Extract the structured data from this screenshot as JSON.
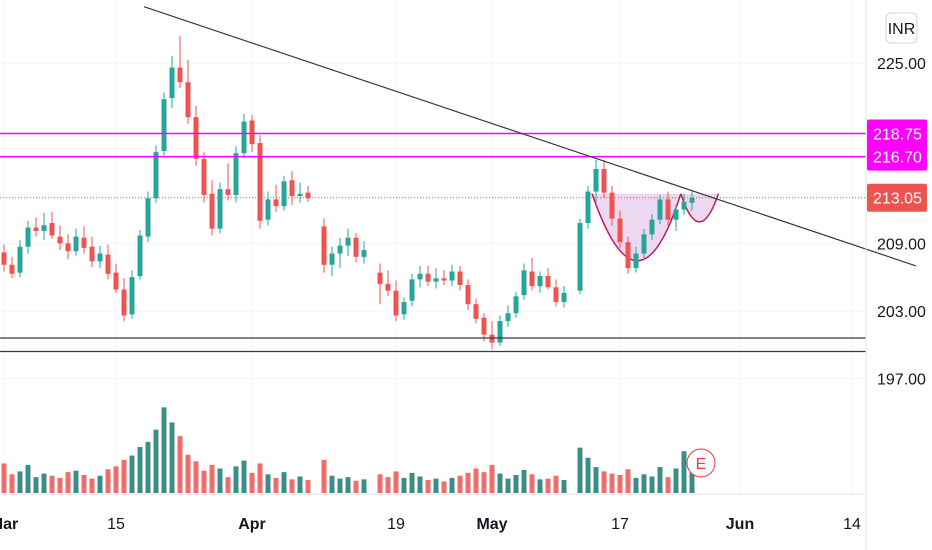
{
  "chart_data": {
    "type": "candlestick",
    "currency": "INR",
    "y_axis": {
      "min": 193.5,
      "max": 229,
      "ticks": [
        225.0,
        218.75,
        216.7,
        213.05,
        209.0,
        203.0,
        197.0
      ],
      "tick_labels": [
        "225.00",
        "209.00",
        "203.00",
        "197.00"
      ]
    },
    "x_axis": {
      "labels": [
        "Mar",
        "15",
        "Apr",
        "19",
        "May",
        "17",
        "Jun",
        "14"
      ],
      "bold_labels": [
        "Mar",
        "Apr",
        "May",
        "Jun"
      ],
      "label_days": [
        0,
        14,
        31,
        49,
        61,
        77,
        92,
        106
      ]
    },
    "horizontal_levels": [
      {
        "value": 218.75,
        "label": "218.75",
        "color": "#ff00ff"
      },
      {
        "value": 216.7,
        "label": "216.70",
        "color": "#ff00ff"
      }
    ],
    "support_levels": [
      200.6,
      199.4
    ],
    "current_price": {
      "value": 213.05,
      "label": "213.05",
      "color": "#ef5350"
    },
    "trendline": {
      "start": {
        "day": 17.5,
        "price": 230.0
      },
      "end": {
        "day": 114,
        "price": 207.0
      }
    },
    "pattern": "cup-and-handle",
    "earnings_marker": "E",
    "candles": [
      [
        0,
        208.2,
        208.9,
        206.5,
        207.1
      ],
      [
        1,
        207.1,
        207.8,
        205.9,
        206.3
      ],
      [
        2,
        206.4,
        209.3,
        206.0,
        208.7
      ],
      [
        3,
        208.7,
        211.0,
        208.1,
        210.4
      ],
      [
        4,
        210.4,
        211.3,
        209.6,
        210.1
      ],
      [
        5,
        210.1,
        211.7,
        209.3,
        210.6
      ],
      [
        6,
        210.8,
        211.8,
        209.4,
        209.7
      ],
      [
        7,
        209.6,
        210.6,
        208.4,
        209.0
      ],
      [
        8,
        209.0,
        209.8,
        207.6,
        208.3
      ],
      [
        9,
        208.3,
        210.3,
        207.9,
        209.6
      ],
      [
        10,
        209.5,
        210.5,
        208.1,
        208.6
      ],
      [
        11,
        208.7,
        209.6,
        206.9,
        207.4
      ],
      [
        12,
        207.4,
        208.8,
        206.8,
        208.1
      ],
      [
        13,
        208.0,
        208.9,
        205.8,
        206.3
      ],
      [
        14,
        206.4,
        207.2,
        204.6,
        204.9
      ],
      [
        15,
        204.9,
        205.9,
        202.1,
        202.6
      ],
      [
        16,
        202.7,
        206.6,
        202.3,
        206.0
      ],
      [
        17,
        206.1,
        210.2,
        205.8,
        209.7
      ],
      [
        18,
        209.6,
        213.6,
        209.1,
        213.0
      ],
      [
        19,
        213.0,
        217.7,
        212.6,
        217.1
      ],
      [
        20,
        217.2,
        222.4,
        216.8,
        221.8
      ],
      [
        21,
        221.9,
        225.6,
        221.0,
        224.6
      ],
      [
        22,
        224.6,
        227.4,
        222.8,
        223.3
      ],
      [
        23,
        223.3,
        225.3,
        219.6,
        220.2
      ],
      [
        24,
        220.2,
        221.2,
        215.9,
        216.5
      ],
      [
        25,
        216.5,
        217.1,
        212.6,
        213.3
      ],
      [
        26,
        213.4,
        214.6,
        209.7,
        210.3
      ],
      [
        27,
        210.3,
        214.4,
        209.9,
        213.8
      ],
      [
        28,
        213.8,
        216.1,
        212.8,
        213.3
      ],
      [
        29,
        213.3,
        217.6,
        212.6,
        217.0
      ],
      [
        30,
        217.0,
        220.5,
        216.6,
        219.8
      ],
      [
        31,
        219.9,
        220.4,
        217.1,
        217.8
      ],
      [
        32,
        217.9,
        218.6,
        210.3,
        211.0
      ],
      [
        33,
        211.1,
        213.6,
        210.6,
        212.9
      ],
      [
        34,
        212.9,
        214.2,
        211.8,
        212.3
      ],
      [
        35,
        212.3,
        215.0,
        211.9,
        214.5
      ],
      [
        36,
        214.6,
        215.4,
        212.4,
        213.2
      ],
      [
        37,
        213.2,
        214.4,
        212.6,
        213.4
      ],
      [
        38,
        213.5,
        214.1,
        212.7,
        213.0
      ],
      [
        40,
        210.5,
        211.2,
        206.4,
        207.1
      ],
      [
        41,
        207.1,
        208.7,
        206.1,
        208.1
      ],
      [
        42,
        208.1,
        209.5,
        206.8,
        208.8
      ],
      [
        43,
        208.8,
        210.3,
        207.9,
        209.5
      ],
      [
        44,
        209.5,
        209.9,
        207.3,
        207.8
      ],
      [
        45,
        207.8,
        209.2,
        207.2,
        208.4
      ],
      [
        47,
        206.4,
        207.2,
        203.6,
        205.4
      ],
      [
        48,
        205.4,
        206.6,
        204.3,
        204.8
      ],
      [
        49,
        204.8,
        205.7,
        202.1,
        202.6
      ],
      [
        50,
        202.7,
        204.2,
        202.2,
        203.8
      ],
      [
        51,
        203.9,
        206.3,
        203.4,
        205.8
      ],
      [
        52,
        205.8,
        207.0,
        205.1,
        206.3
      ],
      [
        53,
        206.3,
        207.0,
        205.2,
        205.6
      ],
      [
        54,
        205.6,
        206.8,
        205.0,
        205.9
      ],
      [
        55,
        205.9,
        206.6,
        205.3,
        205.7
      ],
      [
        56,
        205.7,
        207.1,
        205.2,
        206.5
      ],
      [
        57,
        206.5,
        207.0,
        204.8,
        205.3
      ],
      [
        58,
        205.3,
        205.8,
        203.1,
        203.6
      ],
      [
        59,
        203.6,
        204.1,
        201.9,
        202.3
      ],
      [
        60,
        202.4,
        202.8,
        200.3,
        200.9
      ],
      [
        61,
        200.9,
        202.1,
        199.6,
        200.2
      ],
      [
        62,
        200.2,
        202.6,
        199.9,
        202.1
      ],
      [
        63,
        202.1,
        203.5,
        201.6,
        202.8
      ],
      [
        64,
        202.8,
        204.7,
        202.4,
        204.3
      ],
      [
        65,
        204.4,
        207.2,
        204.0,
        206.6
      ],
      [
        66,
        206.5,
        207.7,
        204.8,
        205.2
      ],
      [
        67,
        205.2,
        206.5,
        204.6,
        206.1
      ],
      [
        68,
        206.1,
        206.8,
        204.9,
        205.1
      ],
      [
        69,
        205.1,
        205.8,
        203.4,
        203.8
      ],
      [
        70,
        203.8,
        205.2,
        203.3,
        204.6
      ],
      [
        72,
        204.8,
        211.2,
        204.5,
        210.8
      ],
      [
        73,
        210.8,
        214.1,
        210.3,
        213.6
      ],
      [
        74,
        213.6,
        216.4,
        212.6,
        215.6
      ],
      [
        75,
        215.6,
        216.4,
        213.0,
        213.5
      ],
      [
        76,
        213.5,
        214.1,
        210.6,
        211.2
      ],
      [
        77,
        211.2,
        211.9,
        208.6,
        209.1
      ],
      [
        78,
        209.1,
        209.6,
        206.3,
        206.8
      ],
      [
        79,
        206.8,
        208.7,
        206.4,
        208.1
      ],
      [
        80,
        208.1,
        210.3,
        207.7,
        209.8
      ],
      [
        81,
        209.8,
        211.6,
        209.3,
        211.1
      ],
      [
        82,
        211.1,
        213.3,
        210.7,
        212.9
      ],
      [
        83,
        212.9,
        213.6,
        210.6,
        211.1
      ],
      [
        84,
        211.1,
        212.4,
        210.1,
        212.0
      ],
      [
        85,
        212.0,
        213.4,
        211.5,
        212.7
      ],
      [
        86,
        212.6,
        213.7,
        211.9,
        213.05
      ]
    ],
    "volumes": [
      [
        0,
        4.1,
        "d"
      ],
      [
        1,
        2.6,
        "d"
      ],
      [
        2,
        3.0,
        "u"
      ],
      [
        3,
        3.9,
        "u"
      ],
      [
        4,
        2.2,
        "u"
      ],
      [
        5,
        2.7,
        "u"
      ],
      [
        6,
        2.4,
        "d"
      ],
      [
        7,
        2.1,
        "d"
      ],
      [
        8,
        2.9,
        "d"
      ],
      [
        9,
        3.1,
        "u"
      ],
      [
        10,
        2.5,
        "d"
      ],
      [
        11,
        2.0,
        "d"
      ],
      [
        12,
        2.4,
        "u"
      ],
      [
        13,
        3.3,
        "d"
      ],
      [
        14,
        3.7,
        "d"
      ],
      [
        15,
        4.6,
        "d"
      ],
      [
        16,
        5.2,
        "u"
      ],
      [
        17,
        6.4,
        "u"
      ],
      [
        18,
        7.1,
        "u"
      ],
      [
        19,
        8.8,
        "u"
      ],
      [
        20,
        11.9,
        "u"
      ],
      [
        21,
        9.8,
        "u"
      ],
      [
        22,
        7.9,
        "d"
      ],
      [
        23,
        5.3,
        "d"
      ],
      [
        24,
        4.4,
        "d"
      ],
      [
        25,
        3.1,
        "d"
      ],
      [
        26,
        3.9,
        "d"
      ],
      [
        27,
        3.4,
        "u"
      ],
      [
        28,
        2.2,
        "d"
      ],
      [
        29,
        3.7,
        "u"
      ],
      [
        30,
        4.5,
        "u"
      ],
      [
        31,
        2.8,
        "d"
      ],
      [
        32,
        4.1,
        "d"
      ],
      [
        33,
        2.6,
        "u"
      ],
      [
        34,
        2.1,
        "d"
      ],
      [
        35,
        2.9,
        "u"
      ],
      [
        36,
        1.9,
        "d"
      ],
      [
        37,
        2.3,
        "u"
      ],
      [
        38,
        1.8,
        "d"
      ],
      [
        40,
        4.6,
        "d"
      ],
      [
        41,
        2.4,
        "u"
      ],
      [
        42,
        2.0,
        "u"
      ],
      [
        43,
        2.2,
        "u"
      ],
      [
        44,
        1.7,
        "d"
      ],
      [
        45,
        1.9,
        "u"
      ],
      [
        47,
        2.6,
        "d"
      ],
      [
        48,
        2.2,
        "d"
      ],
      [
        49,
        3.0,
        "d"
      ],
      [
        50,
        2.1,
        "u"
      ],
      [
        51,
        2.8,
        "u"
      ],
      [
        52,
        2.3,
        "u"
      ],
      [
        53,
        1.8,
        "d"
      ],
      [
        54,
        2.0,
        "u"
      ],
      [
        55,
        1.6,
        "d"
      ],
      [
        56,
        2.1,
        "u"
      ],
      [
        57,
        2.4,
        "d"
      ],
      [
        58,
        2.8,
        "d"
      ],
      [
        59,
        3.4,
        "d"
      ],
      [
        60,
        2.9,
        "d"
      ],
      [
        61,
        3.9,
        "d"
      ],
      [
        62,
        2.7,
        "u"
      ],
      [
        63,
        2.0,
        "u"
      ],
      [
        64,
        2.5,
        "u"
      ],
      [
        65,
        3.2,
        "u"
      ],
      [
        66,
        2.6,
        "d"
      ],
      [
        67,
        1.9,
        "u"
      ],
      [
        68,
        2.0,
        "d"
      ],
      [
        69,
        2.4,
        "d"
      ],
      [
        70,
        1.8,
        "u"
      ],
      [
        72,
        6.3,
        "u"
      ],
      [
        73,
        4.9,
        "u"
      ],
      [
        74,
        3.6,
        "u"
      ],
      [
        75,
        3.0,
        "d"
      ],
      [
        76,
        2.7,
        "d"
      ],
      [
        77,
        2.5,
        "d"
      ],
      [
        78,
        3.3,
        "d"
      ],
      [
        79,
        2.1,
        "u"
      ],
      [
        80,
        2.6,
        "u"
      ],
      [
        81,
        2.3,
        "u"
      ],
      [
        82,
        3.6,
        "u"
      ],
      [
        83,
        2.2,
        "d"
      ],
      [
        84,
        3.4,
        "u"
      ],
      [
        85,
        5.8,
        "u"
      ],
      [
        86,
        2.9,
        "u"
      ]
    ],
    "colors": {
      "up": "#26a69a",
      "down": "#ef5350",
      "up_volume": "#1a7a6e",
      "down_volume": "#ef5350",
      "magenta": "#ff00ff",
      "trendline": "#363a45",
      "support": "#363a45",
      "pattern_fill": "#e1bee7"
    }
  }
}
